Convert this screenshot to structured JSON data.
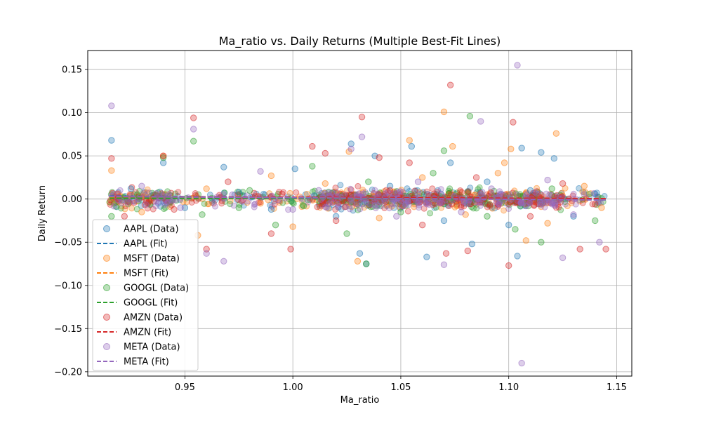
{
  "chart_data": {
    "type": "scatter",
    "title": "Ma_ratio vs. Daily Returns (Multiple Best-Fit Lines)",
    "xlabel": "Ma_ratio",
    "ylabel": "Daily Return",
    "xlim": [
      0.905,
      1.157
    ],
    "ylim": [
      -0.205,
      0.172
    ],
    "x_ticks": [
      0.95,
      1.0,
      1.05,
      1.1,
      1.15
    ],
    "x_tick_labels": [
      "0.95",
      "1.00",
      "1.05",
      "1.10",
      "1.15"
    ],
    "y_ticks": [
      0.15,
      0.1,
      0.05,
      0.0,
      -0.05,
      -0.1,
      -0.15,
      -0.2
    ],
    "y_tick_labels": [
      "0.15",
      "0.10",
      "0.05",
      "0.00",
      "−0.05",
      "−0.10",
      "−0.15",
      "−0.20"
    ],
    "grid": true,
    "legend_position": "lower-left",
    "series": [
      {
        "name": "AAPL",
        "data_label": "AAPL (Data)",
        "fit_label": "AAPL (Fit)",
        "color": "#1f77b4",
        "fit": {
          "x": [
            0.915,
            1.145
          ],
          "y": [
            0.0035,
            -0.001
          ]
        },
        "points": [
          [
            0.916,
            0.068
          ],
          [
            0.94,
            0.042
          ],
          [
            0.968,
            0.037
          ],
          [
            1.001,
            0.035
          ],
          [
            1.027,
            0.064
          ],
          [
            1.031,
            -0.063
          ],
          [
            1.034,
            -0.075
          ],
          [
            1.038,
            0.05
          ],
          [
            1.055,
            0.061
          ],
          [
            1.062,
            -0.067
          ],
          [
            1.073,
            0.042
          ],
          [
            1.083,
            -0.052
          ],
          [
            1.104,
            -0.066
          ],
          [
            1.106,
            0.059
          ],
          [
            1.115,
            0.054
          ],
          [
            1.121,
            0.047
          ],
          [
            0.925,
            0.012
          ],
          [
            0.95,
            -0.01
          ],
          [
            0.975,
            0.008
          ],
          [
            0.99,
            -0.012
          ],
          [
            1.01,
            0.004
          ],
          [
            1.02,
            -0.02
          ],
          [
            1.045,
            0.015
          ],
          [
            1.07,
            -0.025
          ],
          [
            1.09,
            0.02
          ],
          [
            1.1,
            -0.03
          ],
          [
            1.11,
            0.01
          ],
          [
            1.13,
            -0.02
          ],
          [
            1.14,
            0.006
          ]
        ]
      },
      {
        "name": "MSFT",
        "data_label": "MSFT (Data)",
        "fit_label": "MSFT (Fit)",
        "color": "#ff7f0e",
        "fit": {
          "x": [
            0.915,
            1.145
          ],
          "y": [
            0.0025,
            0.0005
          ]
        },
        "points": [
          [
            0.916,
            0.033
          ],
          [
            0.94,
            0.05
          ],
          [
            0.956,
            -0.042
          ],
          [
            0.99,
            0.027
          ],
          [
            1.0,
            -0.032
          ],
          [
            1.026,
            0.055
          ],
          [
            1.03,
            -0.072
          ],
          [
            1.054,
            0.068
          ],
          [
            1.07,
            0.101
          ],
          [
            1.074,
            0.061
          ],
          [
            1.098,
            0.042
          ],
          [
            1.101,
            0.058
          ],
          [
            1.108,
            -0.048
          ],
          [
            1.122,
            0.076
          ],
          [
            0.93,
            -0.015
          ],
          [
            0.96,
            0.012
          ],
          [
            0.985,
            -0.005
          ],
          [
            1.015,
            0.018
          ],
          [
            1.04,
            -0.022
          ],
          [
            1.06,
            0.025
          ],
          [
            1.08,
            -0.018
          ],
          [
            1.095,
            0.03
          ],
          [
            1.118,
            -0.028
          ],
          [
            1.135,
            0.015
          ],
          [
            1.143,
            -0.01
          ]
        ]
      },
      {
        "name": "GOOGL",
        "data_label": "GOOGL (Data)",
        "fit_label": "GOOGL (Fit)",
        "color": "#2ca02c",
        "fit": {
          "x": [
            0.915,
            1.145
          ],
          "y": [
            0.001,
            0.0
          ]
        },
        "points": [
          [
            0.916,
            -0.02
          ],
          [
            0.94,
            0.048
          ],
          [
            0.954,
            0.067
          ],
          [
            0.975,
            -0.01
          ],
          [
            0.992,
            -0.03
          ],
          [
            1.009,
            0.038
          ],
          [
            1.025,
            -0.04
          ],
          [
            1.034,
            -0.075
          ],
          [
            1.07,
            0.056
          ],
          [
            1.082,
            0.096
          ],
          [
            1.103,
            -0.035
          ],
          [
            1.115,
            -0.05
          ],
          [
            0.928,
            0.005
          ],
          [
            0.958,
            -0.018
          ],
          [
            0.98,
            0.01
          ],
          [
            1.005,
            -0.008
          ],
          [
            1.035,
            0.02
          ],
          [
            1.05,
            -0.015
          ],
          [
            1.065,
            0.03
          ],
          [
            1.09,
            -0.02
          ],
          [
            1.12,
            0.012
          ],
          [
            1.14,
            -0.025
          ]
        ]
      },
      {
        "name": "AMZN",
        "data_label": "AMZN (Data)",
        "fit_label": "AMZN (Fit)",
        "color": "#d62728",
        "fit": {
          "x": [
            0.915,
            1.145
          ],
          "y": [
            0.003,
            0.0005
          ]
        },
        "points": [
          [
            0.916,
            0.047
          ],
          [
            0.94,
            0.05
          ],
          [
            0.954,
            0.094
          ],
          [
            0.96,
            -0.058
          ],
          [
            0.99,
            -0.04
          ],
          [
            0.999,
            -0.058
          ],
          [
            1.009,
            0.061
          ],
          [
            1.015,
            0.053
          ],
          [
            1.032,
            0.095
          ],
          [
            1.04,
            0.048
          ],
          [
            1.054,
            0.042
          ],
          [
            1.071,
            -0.063
          ],
          [
            1.073,
            0.132
          ],
          [
            1.081,
            -0.06
          ],
          [
            1.102,
            0.089
          ],
          [
            1.1,
            -0.077
          ],
          [
            1.133,
            -0.058
          ],
          [
            1.145,
            -0.058
          ],
          [
            0.922,
            -0.02
          ],
          [
            0.945,
            -0.012
          ],
          [
            0.97,
            0.02
          ],
          [
            0.995,
            0.006
          ],
          [
            1.02,
            -0.025
          ],
          [
            1.045,
            0.01
          ],
          [
            1.06,
            -0.03
          ],
          [
            1.085,
            0.025
          ],
          [
            1.11,
            -0.02
          ],
          [
            1.125,
            0.018
          ],
          [
            1.14,
            -0.006
          ]
        ]
      },
      {
        "name": "META",
        "data_label": "META (Data)",
        "fit_label": "META (Fit)",
        "color": "#9467bd",
        "fit": {
          "x": [
            0.915,
            1.145
          ],
          "y": [
            0.003,
            -0.001
          ]
        },
        "points": [
          [
            0.916,
            0.108
          ],
          [
            0.954,
            0.081
          ],
          [
            0.96,
            -0.063
          ],
          [
            0.968,
            -0.072
          ],
          [
            0.985,
            0.032
          ],
          [
            1.032,
            0.072
          ],
          [
            1.027,
            0.058
          ],
          [
            1.07,
            -0.076
          ],
          [
            1.087,
            0.09
          ],
          [
            1.104,
            0.155
          ],
          [
            1.106,
            -0.19
          ],
          [
            1.125,
            -0.068
          ],
          [
            1.142,
            -0.05
          ],
          [
            0.93,
            0.015
          ],
          [
            0.948,
            -0.01
          ],
          [
            0.972,
            0.005
          ],
          [
            1.0,
            -0.012
          ],
          [
            1.012,
            0.01
          ],
          [
            1.048,
            -0.02
          ],
          [
            1.058,
            0.02
          ],
          [
            1.078,
            -0.015
          ],
          [
            1.092,
            0.012
          ],
          [
            1.108,
            -0.008
          ],
          [
            1.118,
            0.022
          ],
          [
            1.13,
            -0.018
          ]
        ]
      }
    ]
  }
}
